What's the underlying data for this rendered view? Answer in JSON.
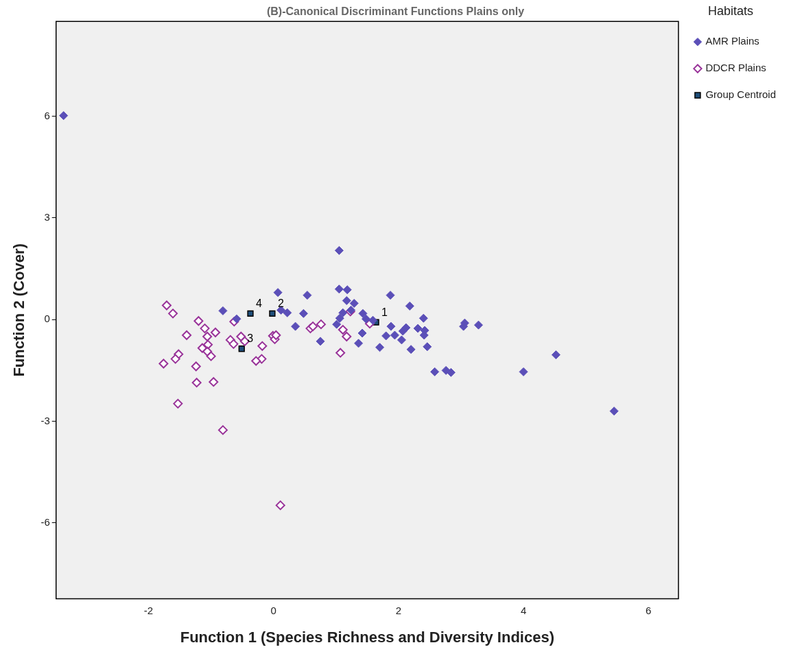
{
  "chart_data": {
    "type": "scatter",
    "title": "(B)-Canonical Discriminant Functions Plains only",
    "xlabel": "Function 1 (Species Richness and Diversity Indices)",
    "ylabel": "Function 2 (Cover)",
    "legend_title": "Habitats",
    "legend": "top right",
    "grid": false,
    "marker": "diamond",
    "xlim": [
      -3.48,
      6.48
    ],
    "xticks": [
      -2,
      0,
      2,
      4,
      6
    ],
    "ylim": [
      -8.24,
      8.8
    ],
    "yticks": [
      -6,
      -3,
      0,
      3,
      6
    ],
    "series": [
      {
        "name": "AMR Plains",
        "color": "#5b4fb8",
        "x": [
          -3.36,
          1.05,
          1.05,
          1.18,
          0.07,
          0.54,
          1.87,
          1.29,
          1.17,
          2.18,
          -0.81,
          0.12,
          0.22,
          0.48,
          1.11,
          1.24,
          1.43,
          1.06,
          1.48,
          2.4,
          -0.59,
          0.35,
          0.75,
          1.59,
          1.01,
          1.42,
          1.36,
          1.7,
          1.88,
          1.8,
          1.94,
          2.07,
          2.05,
          2.2,
          2.12,
          2.31,
          2.42,
          2.46,
          2.41,
          2.58,
          2.76,
          2.84,
          3.04,
          3.06,
          3.28,
          4.0,
          4.52,
          5.45
        ],
        "values": [
          6.02,
          2.04,
          0.9,
          0.88,
          0.8,
          0.72,
          0.72,
          0.48,
          0.56,
          0.4,
          0.26,
          0.28,
          0.2,
          0.18,
          0.2,
          0.28,
          0.18,
          0.04,
          0.02,
          0.04,
          0.02,
          -0.2,
          -0.64,
          -0.02,
          -0.14,
          -0.4,
          -0.7,
          -0.82,
          -0.2,
          -0.48,
          -0.46,
          -0.34,
          -0.6,
          -0.88,
          -0.24,
          -0.26,
          -0.32,
          -0.8,
          -0.46,
          -1.54,
          -1.5,
          -1.56,
          -0.2,
          -0.1,
          -0.16,
          -1.54,
          -1.04,
          -2.7
        ]
      },
      {
        "name": "DDCR Plains",
        "color": "#993399",
        "x": [
          -1.71,
          -1.61,
          -1.2,
          -1.1,
          -1.39,
          -0.93,
          -1.06,
          -1.14,
          -1.05,
          -1.0,
          -1.06,
          -1.52,
          -1.57,
          -1.76,
          -1.24,
          -1.23,
          -0.96,
          -1.53,
          -0.63,
          -0.52,
          -0.69,
          -0.64,
          -0.46,
          -0.18,
          -0.19,
          -0.28,
          -0.01,
          0.02,
          0.04,
          0.76,
          0.59,
          0.63,
          1.07,
          1.11,
          1.17,
          1.23,
          1.54,
          -0.81,
          0.11
        ],
        "values": [
          0.42,
          0.18,
          -0.04,
          -0.26,
          -0.46,
          -0.38,
          -0.5,
          -0.84,
          -0.74,
          -1.08,
          -0.94,
          -1.02,
          -1.16,
          -1.3,
          -1.38,
          -1.86,
          -1.84,
          -2.48,
          -0.06,
          -0.5,
          -0.6,
          -0.72,
          -0.64,
          -0.78,
          -1.16,
          -1.22,
          -0.48,
          -0.58,
          -0.46,
          -0.14,
          -0.26,
          -0.2,
          -0.98,
          -0.3,
          -0.5,
          0.24,
          -0.12,
          -3.26,
          -5.48
        ]
      },
      {
        "name": "Group Centroid",
        "color": "#1f4e79",
        "marker": "square",
        "x": [
          1.64,
          -0.02,
          -0.51,
          -0.37
        ],
        "values": [
          -0.08,
          0.18,
          -0.86,
          0.18
        ]
      }
    ],
    "annotations": [
      {
        "text": "1",
        "x": 1.64,
        "y": -0.08
      },
      {
        "text": "2",
        "x": -0.02,
        "y": 0.18
      },
      {
        "text": "3",
        "x": -0.51,
        "y": -0.86
      },
      {
        "text": "4",
        "x": -0.37,
        "y": 0.18
      }
    ]
  }
}
